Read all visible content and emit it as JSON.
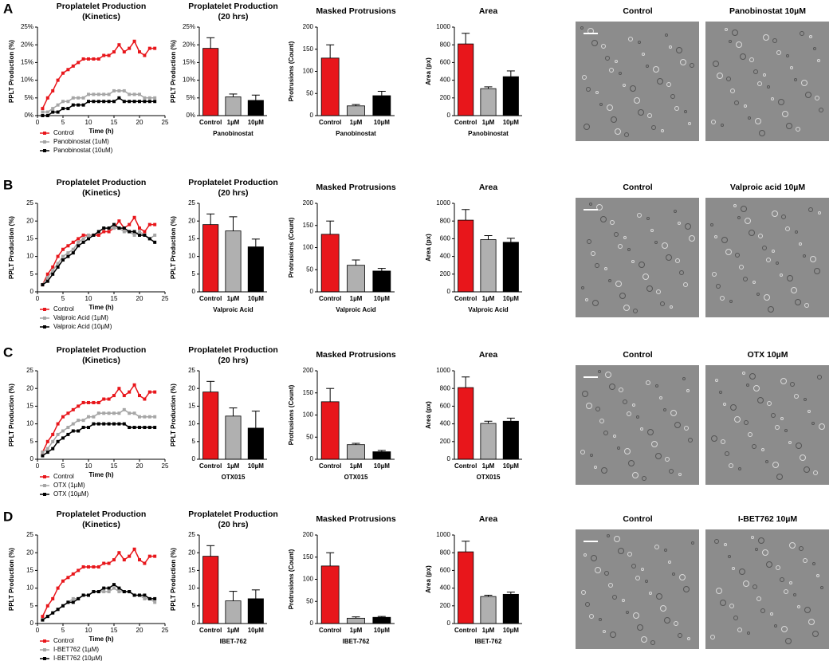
{
  "panels": [
    {
      "label": "A",
      "images": [
        "Control",
        "Panobinostat 10µM"
      ]
    },
    {
      "label": "B",
      "images": [
        "Control",
        "Valproic acid 10µM"
      ]
    },
    {
      "label": "C",
      "images": [
        "Control",
        "OTX 10µM"
      ]
    },
    {
      "label": "D",
      "images": [
        "Control",
        "I-BET762 10µM"
      ]
    }
  ],
  "chart_data": [
    {
      "type": "line",
      "title": [
        "Proplatelet Production",
        "(Kinetics)"
      ],
      "xlabel": "Time (h)",
      "ylabel": "PPLT Production (%)",
      "x": [
        1,
        2,
        3,
        4,
        5,
        6,
        7,
        8,
        9,
        10,
        11,
        12,
        13,
        14,
        15,
        16,
        17,
        18,
        19,
        20,
        21,
        22,
        23
      ],
      "xlim": [
        0,
        25
      ],
      "xticks": [
        0,
        5,
        10,
        15,
        20,
        25
      ],
      "ylim": [
        0,
        25
      ],
      "yticks": [
        {
          "value": 0,
          "label": "0%"
        },
        {
          "value": 5,
          "label": "5%"
        },
        {
          "value": 10,
          "label": "10%"
        },
        {
          "value": 15,
          "label": "15%"
        },
        {
          "value": 20,
          "label": "20%"
        },
        {
          "value": 25,
          "label": "25%"
        }
      ],
      "series": [
        {
          "name": "Control",
          "color": "#e8161b",
          "values": [
            2,
            5,
            7,
            10,
            12,
            13,
            14,
            15,
            16,
            16,
            16,
            16,
            17,
            17,
            18,
            20,
            18,
            19,
            21,
            18,
            17,
            19,
            19
          ]
        },
        {
          "name": "Panobinostat (1uM)",
          "color": "#a6a6a6",
          "values": [
            1,
            1,
            2,
            3,
            4,
            4,
            5,
            5,
            5,
            6,
            6,
            6,
            6,
            6,
            7,
            7,
            7,
            6,
            6,
            6,
            5,
            5,
            5
          ]
        },
        {
          "name": "Panobinostat (10uM)",
          "color": "#000000",
          "values": [
            0,
            0,
            1,
            1,
            2,
            2,
            3,
            3,
            3,
            4,
            4,
            4,
            4,
            4,
            4,
            5,
            4,
            4,
            4,
            4,
            4,
            4,
            4
          ]
        }
      ]
    },
    {
      "type": "bar",
      "title": [
        "Proplatelet Production",
        "(20 hrs)"
      ],
      "ylabel": "PPLT Production (%)",
      "xlabel": "Panobinostat",
      "categories": [
        "Control",
        "1µM",
        "10µM"
      ],
      "values": [
        19,
        5.3,
        4.3
      ],
      "errors": [
        3,
        0.8,
        1.5
      ],
      "colors": [
        "#e8161b",
        "#b0b0b0",
        "#000000"
      ],
      "ylim": [
        0,
        25
      ],
      "yticks": [
        {
          "value": 0,
          "label": "0%"
        },
        {
          "value": 5,
          "label": "5%"
        },
        {
          "value": 10,
          "label": "10%"
        },
        {
          "value": 15,
          "label": "15%"
        },
        {
          "value": 20,
          "label": "20%"
        },
        {
          "value": 25,
          "label": "25%"
        }
      ]
    },
    {
      "type": "bar",
      "title": [
        "Masked Protrusions"
      ],
      "ylabel": "Protrusions (Count)",
      "xlabel": "Panobinostat",
      "categories": [
        "Control",
        "1µM",
        "10µM"
      ],
      "values": [
        130,
        22,
        45
      ],
      "errors": [
        30,
        3,
        10
      ],
      "colors": [
        "#e8161b",
        "#b0b0b0",
        "#000000"
      ],
      "ylim": [
        0,
        200
      ],
      "yticks": [
        0,
        50,
        100,
        150,
        200
      ]
    },
    {
      "type": "bar",
      "title": [
        "Area"
      ],
      "ylabel": "Area (px)",
      "xlabel": "Panobinostat",
      "categories": [
        "Control",
        "1µM",
        "10µM"
      ],
      "values": [
        810,
        305,
        440
      ],
      "errors": [
        120,
        20,
        65
      ],
      "colors": [
        "#e8161b",
        "#b0b0b0",
        "#000000"
      ],
      "ylim": [
        0,
        1000
      ],
      "yticks": [
        0,
        200,
        400,
        600,
        800,
        1000
      ]
    },
    {
      "type": "line",
      "title": [
        "Proplatelet Production",
        "(Kinetics)"
      ],
      "xlabel": "Time (h)",
      "ylabel": "PPLT Production (%)",
      "x": [
        1,
        2,
        3,
        4,
        5,
        6,
        7,
        8,
        9,
        10,
        11,
        12,
        13,
        14,
        15,
        16,
        17,
        18,
        19,
        20,
        21,
        22,
        23
      ],
      "xlim": [
        0,
        25
      ],
      "xticks": [
        0,
        5,
        10,
        15,
        20,
        25
      ],
      "ylim": [
        0,
        25
      ],
      "yticks": [
        0,
        5,
        10,
        15,
        20,
        25
      ],
      "series": [
        {
          "name": "Control",
          "color": "#e8161b",
          "values": [
            2,
            5,
            7,
            10,
            12,
            13,
            14,
            15,
            16,
            16,
            16,
            16,
            17,
            17,
            18,
            20,
            18,
            19,
            21,
            18,
            17,
            19,
            19
          ]
        },
        {
          "name": "Valproic Acid (1µM)",
          "color": "#a6a6a6",
          "values": [
            2,
            4,
            6,
            8,
            10,
            11,
            12,
            14,
            15,
            16,
            16,
            17,
            18,
            18,
            18,
            18,
            17,
            17,
            16,
            17,
            16,
            15,
            16
          ]
        },
        {
          "name": "Valproic Acid (10µM)",
          "color": "#000000",
          "values": [
            2,
            3,
            5,
            7,
            9,
            10,
            11,
            13,
            14,
            15,
            16,
            17,
            18,
            18,
            19,
            18,
            18,
            17,
            17,
            16,
            16,
            15,
            14
          ]
        }
      ]
    },
    {
      "type": "bar",
      "title": [
        "Proplatelet Production",
        "(20 hrs)"
      ],
      "ylabel": "PPLT Production (%)",
      "xlabel": "Valproic Acid",
      "categories": [
        "Control",
        "1µM",
        "10µM"
      ],
      "values": [
        19,
        17.2,
        12.7
      ],
      "errors": [
        3,
        4,
        2.2
      ],
      "colors": [
        "#e8161b",
        "#b0b0b0",
        "#000000"
      ],
      "ylim": [
        0,
        25
      ],
      "yticks": [
        0,
        5,
        10,
        15,
        20,
        25
      ]
    },
    {
      "type": "bar",
      "title": [
        "Masked Protrusions"
      ],
      "ylabel": "Protrusions (Count)",
      "xlabel": "Valproic Acid",
      "categories": [
        "Control",
        "1µM",
        "10µM"
      ],
      "values": [
        130,
        60,
        47
      ],
      "errors": [
        30,
        12,
        6
      ],
      "colors": [
        "#e8161b",
        "#b0b0b0",
        "#000000"
      ],
      "ylim": [
        0,
        200
      ],
      "yticks": [
        0,
        50,
        100,
        150,
        200
      ]
    },
    {
      "type": "bar",
      "title": [
        "Area"
      ],
      "ylabel": "Area (px)",
      "xlabel": "Valproic Acid",
      "categories": [
        "Control",
        "1µM",
        "10µM"
      ],
      "values": [
        810,
        590,
        560
      ],
      "errors": [
        120,
        45,
        45
      ],
      "colors": [
        "#e8161b",
        "#b0b0b0",
        "#000000"
      ],
      "ylim": [
        0,
        1000
      ],
      "yticks": [
        0,
        200,
        400,
        600,
        800,
        1000
      ]
    },
    {
      "type": "line",
      "title": [
        "Proplatelet Production",
        "(Kinetics)"
      ],
      "xlabel": "Time (h)",
      "ylabel": "PPLT Production (%)",
      "x": [
        1,
        2,
        3,
        4,
        5,
        6,
        7,
        8,
        9,
        10,
        11,
        12,
        13,
        14,
        15,
        16,
        17,
        18,
        19,
        20,
        21,
        22,
        23
      ],
      "xlim": [
        0,
        25
      ],
      "xticks": [
        0,
        5,
        10,
        15,
        20,
        25
      ],
      "ylim": [
        0,
        25
      ],
      "yticks": [
        0,
        5,
        10,
        15,
        20,
        25
      ],
      "series": [
        {
          "name": "Control",
          "color": "#e8161b",
          "values": [
            2,
            5,
            7,
            10,
            12,
            13,
            14,
            15,
            16,
            16,
            16,
            16,
            17,
            17,
            18,
            20,
            18,
            19,
            21,
            18,
            17,
            19,
            19
          ]
        },
        {
          "name": "OTX (1µM)",
          "color": "#a6a6a6",
          "values": [
            2,
            3,
            5,
            7,
            8,
            9,
            10,
            11,
            11,
            12,
            12,
            13,
            13,
            13,
            13,
            13,
            14,
            13,
            13,
            12,
            12,
            12,
            12
          ]
        },
        {
          "name": "OTX (10µM)",
          "color": "#000000",
          "values": [
            1,
            2,
            3,
            5,
            6,
            7,
            8,
            8,
            9,
            9,
            10,
            10,
            10,
            10,
            10,
            10,
            10,
            9,
            9,
            9,
            9,
            9,
            9
          ]
        }
      ]
    },
    {
      "type": "bar",
      "title": [
        "Proplatelet Production",
        "(20 hrs)"
      ],
      "ylabel": "PPLT Production (%)",
      "xlabel": "OTX015",
      "categories": [
        "Control",
        "1µM",
        "10µM"
      ],
      "values": [
        19,
        12.2,
        8.8
      ],
      "errors": [
        3,
        2.3,
        4.8
      ],
      "colors": [
        "#e8161b",
        "#b0b0b0",
        "#000000"
      ],
      "ylim": [
        0,
        25
      ],
      "yticks": [
        0,
        5,
        10,
        15,
        20,
        25
      ]
    },
    {
      "type": "bar",
      "title": [
        "Masked Protrusions"
      ],
      "ylabel": "Protrusions (Count)",
      "xlabel": "OTX015",
      "categories": [
        "Control",
        "1µM",
        "10µM"
      ],
      "values": [
        130,
        33,
        17
      ],
      "errors": [
        30,
        3,
        3
      ],
      "colors": [
        "#e8161b",
        "#b0b0b0",
        "#000000"
      ],
      "ylim": [
        0,
        200
      ],
      "yticks": [
        0,
        50,
        100,
        150,
        200
      ]
    },
    {
      "type": "bar",
      "title": [
        "Area"
      ],
      "ylabel": "Area (px)",
      "xlabel": "OTX015",
      "categories": [
        "Control",
        "1µM",
        "10µM"
      ],
      "values": [
        810,
        405,
        430
      ],
      "errors": [
        120,
        25,
        35
      ],
      "colors": [
        "#e8161b",
        "#b0b0b0",
        "#000000"
      ],
      "ylim": [
        0,
        1000
      ],
      "yticks": [
        0,
        200,
        400,
        600,
        800,
        1000
      ]
    },
    {
      "type": "line",
      "title": [
        "Proplatelet Production",
        "(Kinetics)"
      ],
      "xlabel": "Time (h)",
      "ylabel": "PPLT Production (%)",
      "x": [
        1,
        2,
        3,
        4,
        5,
        6,
        7,
        8,
        9,
        10,
        11,
        12,
        13,
        14,
        15,
        16,
        17,
        18,
        19,
        20,
        21,
        22,
        23
      ],
      "xlim": [
        0,
        25
      ],
      "xticks": [
        0,
        5,
        10,
        15,
        20,
        25
      ],
      "ylim": [
        0,
        25
      ],
      "yticks": [
        0,
        5,
        10,
        15,
        20,
        25
      ],
      "series": [
        {
          "name": "Control",
          "color": "#e8161b",
          "values": [
            2,
            5,
            7,
            10,
            12,
            13,
            14,
            15,
            16,
            16,
            16,
            16,
            17,
            17,
            18,
            20,
            18,
            19,
            21,
            18,
            17,
            19,
            19
          ]
        },
        {
          "name": "I-BET762 (1µM)",
          "color": "#a6a6a6",
          "values": [
            1,
            2,
            3,
            4,
            5,
            6,
            7,
            7,
            8,
            8,
            9,
            9,
            9,
            9,
            10,
            9,
            9,
            9,
            8,
            8,
            7,
            7,
            6
          ]
        },
        {
          "name": "I-BET762 (10µM)",
          "color": "#000000",
          "values": [
            1,
            2,
            3,
            4,
            5,
            6,
            6,
            7,
            8,
            8,
            9,
            9,
            10,
            10,
            11,
            10,
            9,
            9,
            8,
            8,
            8,
            7,
            7
          ]
        }
      ]
    },
    {
      "type": "bar",
      "title": [
        "Proplatelet Production",
        "(20 hrs)"
      ],
      "ylabel": "PPLT Production (%)",
      "xlabel": "IBET-762",
      "categories": [
        "Control",
        "1µM",
        "10µM"
      ],
      "values": [
        19,
        6.4,
        7
      ],
      "errors": [
        3,
        2.7,
        2.5
      ],
      "colors": [
        "#e8161b",
        "#b0b0b0",
        "#000000"
      ],
      "ylim": [
        0,
        25
      ],
      "yticks": [
        0,
        5,
        10,
        15,
        20,
        25
      ]
    },
    {
      "type": "bar",
      "title": [
        "Masked Protrusions"
      ],
      "ylabel": "Protrusions (Count)",
      "xlabel": "IBET-762",
      "categories": [
        "Control",
        "1µM",
        "10µM"
      ],
      "values": [
        130,
        12,
        14
      ],
      "errors": [
        30,
        3,
        2
      ],
      "colors": [
        "#e8161b",
        "#b0b0b0",
        "#000000"
      ],
      "ylim": [
        0,
        200
      ],
      "yticks": [
        0,
        50,
        100,
        150,
        200
      ]
    },
    {
      "type": "bar",
      "title": [
        "Area"
      ],
      "ylabel": "Area (px)",
      "xlabel": "IBET-762",
      "categories": [
        "Control",
        "1µM",
        "10µM"
      ],
      "values": [
        810,
        305,
        330
      ],
      "errors": [
        120,
        15,
        25
      ],
      "colors": [
        "#e8161b",
        "#b0b0b0",
        "#000000"
      ],
      "ylim": [
        0,
        1000
      ],
      "yticks": [
        0,
        200,
        400,
        600,
        800,
        1000
      ]
    }
  ]
}
